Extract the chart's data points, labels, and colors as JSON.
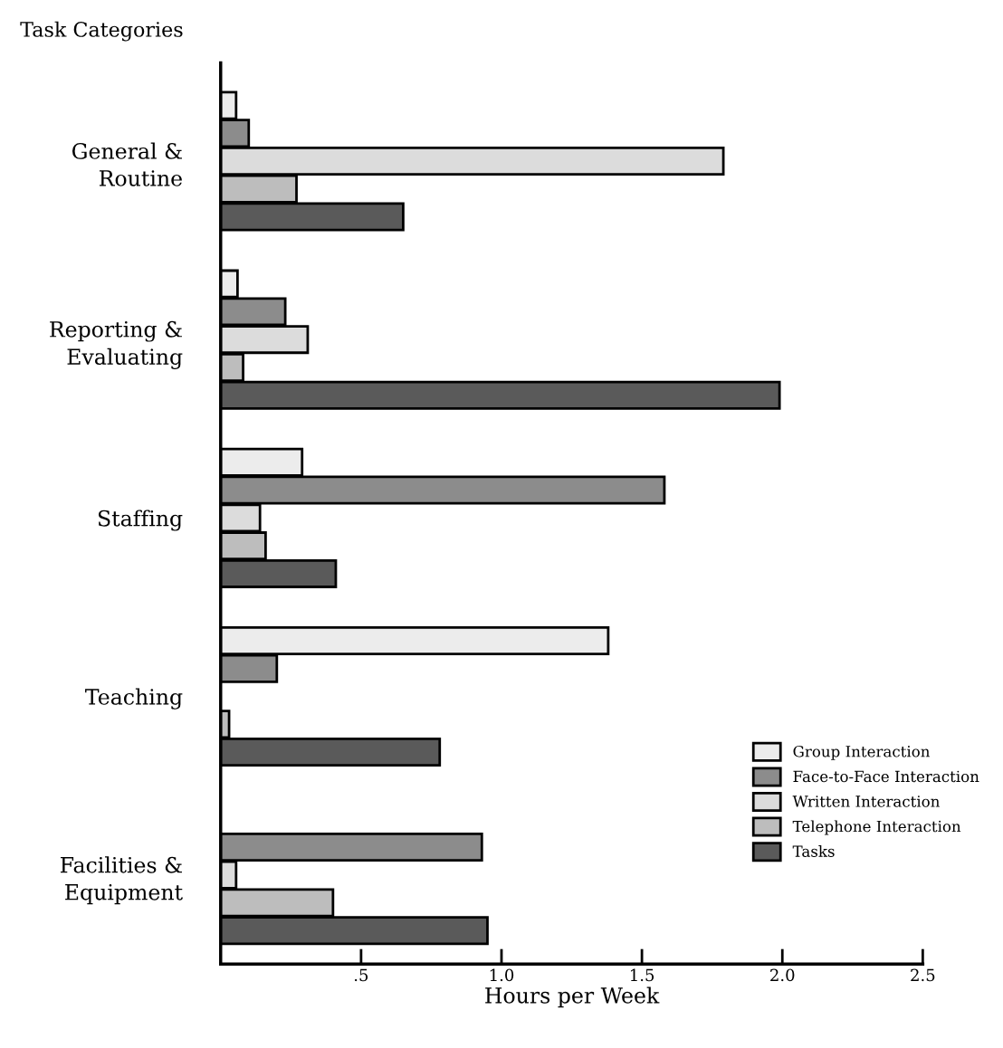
{
  "chart_data": {
    "type": "bar",
    "orientation": "horizontal",
    "title": "Task Categories",
    "xlabel": "Hours per Week",
    "categories": [
      "General &\nRoutine",
      "Reporting &\nEvaluating",
      "Staffing",
      "Teaching",
      "Facilities &\nEquipment"
    ],
    "series": [
      {
        "name": "Group Interaction",
        "color": "#ececec",
        "values": [
          0.055,
          0.06,
          0.29,
          1.38,
          null
        ]
      },
      {
        "name": "Face-to-Face Interaction",
        "color": "#8c8c8c",
        "values": [
          0.1,
          0.23,
          1.58,
          0.2,
          0.93
        ]
      },
      {
        "name": "Written Interaction",
        "color": "#dcdcdc",
        "values": [
          1.79,
          0.31,
          0.14,
          null,
          0.055
        ]
      },
      {
        "name": "Telephone Interaction",
        "color": "#bdbdbd",
        "values": [
          0.27,
          0.08,
          0.16,
          0.03,
          0.4
        ]
      },
      {
        "name": "Tasks",
        "color": "#5a5a5a",
        "values": [
          0.65,
          1.99,
          0.41,
          0.78,
          0.95
        ]
      }
    ],
    "xlim": [
      0,
      2.5
    ],
    "xticks": [
      {
        "value": 0.5,
        "label": ".5"
      },
      {
        "value": 1,
        "label": "1.0"
      },
      {
        "value": 1.5,
        "label": "1.5"
      },
      {
        "value": 2,
        "label": "2.0"
      },
      {
        "value": 2.5,
        "label": "2.5"
      }
    ],
    "grid": false,
    "legend": "bottom right"
  }
}
